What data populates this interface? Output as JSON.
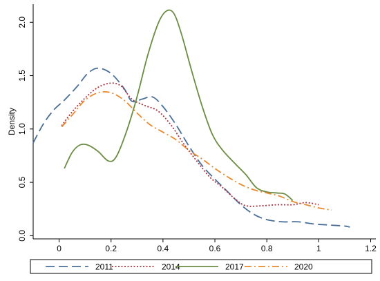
{
  "chart_data": {
    "type": "line",
    "title": "",
    "xlabel": "",
    "ylabel": "Density",
    "xlim": [
      -0.1,
      1.22
    ],
    "ylim": [
      -0.03,
      2.17
    ],
    "x_ticks": [
      "0",
      "0.2",
      "0.4",
      "0.6",
      "0.8",
      "1",
      "1.2"
    ],
    "y_ticks": [
      "0.0",
      "0.5",
      "1.0",
      "1.5",
      "2.0"
    ],
    "grid": false,
    "legend_position": "bottom",
    "series": [
      {
        "name": "2011",
        "color": "#4a6f97",
        "dash": "long-dash",
        "points": [
          [
            -0.1,
            0.87
          ],
          [
            -0.06,
            1.05
          ],
          [
            -0.02,
            1.18
          ],
          [
            0.02,
            1.27
          ],
          [
            0.07,
            1.4
          ],
          [
            0.11,
            1.52
          ],
          [
            0.15,
            1.57
          ],
          [
            0.2,
            1.52
          ],
          [
            0.25,
            1.38
          ],
          [
            0.28,
            1.26
          ],
          [
            0.32,
            1.28
          ],
          [
            0.36,
            1.3
          ],
          [
            0.4,
            1.21
          ],
          [
            0.45,
            1.04
          ],
          [
            0.5,
            0.84
          ],
          [
            0.55,
            0.66
          ],
          [
            0.6,
            0.53
          ],
          [
            0.65,
            0.41
          ],
          [
            0.7,
            0.29
          ],
          [
            0.75,
            0.2
          ],
          [
            0.8,
            0.15
          ],
          [
            0.86,
            0.13
          ],
          [
            0.92,
            0.13
          ],
          [
            0.98,
            0.11
          ],
          [
            1.04,
            0.1
          ],
          [
            1.1,
            0.09
          ],
          [
            1.12,
            0.08
          ]
        ]
      },
      {
        "name": "2014",
        "color": "#a8323e",
        "dash": "dot",
        "points": [
          [
            0.01,
            1.03
          ],
          [
            0.05,
            1.16
          ],
          [
            0.1,
            1.29
          ],
          [
            0.15,
            1.39
          ],
          [
            0.2,
            1.43
          ],
          [
            0.24,
            1.4
          ],
          [
            0.28,
            1.28
          ],
          [
            0.33,
            1.22
          ],
          [
            0.38,
            1.17
          ],
          [
            0.43,
            1.04
          ],
          [
            0.48,
            0.86
          ],
          [
            0.53,
            0.7
          ],
          [
            0.58,
            0.55
          ],
          [
            0.63,
            0.45
          ],
          [
            0.68,
            0.34
          ],
          [
            0.72,
            0.28
          ],
          [
            0.78,
            0.28
          ],
          [
            0.84,
            0.29
          ],
          [
            0.9,
            0.29
          ],
          [
            0.95,
            0.31
          ],
          [
            1.0,
            0.29
          ]
        ]
      },
      {
        "name": "2017",
        "color": "#6b8c42",
        "dash": "solid",
        "points": [
          [
            0.02,
            0.63
          ],
          [
            0.05,
            0.78
          ],
          [
            0.08,
            0.85
          ],
          [
            0.11,
            0.85
          ],
          [
            0.15,
            0.79
          ],
          [
            0.19,
            0.7
          ],
          [
            0.22,
            0.74
          ],
          [
            0.26,
            0.98
          ],
          [
            0.3,
            1.3
          ],
          [
            0.34,
            1.68
          ],
          [
            0.38,
            1.98
          ],
          [
            0.41,
            2.1
          ],
          [
            0.44,
            2.09
          ],
          [
            0.47,
            1.9
          ],
          [
            0.51,
            1.55
          ],
          [
            0.55,
            1.22
          ],
          [
            0.59,
            0.95
          ],
          [
            0.63,
            0.8
          ],
          [
            0.68,
            0.67
          ],
          [
            0.72,
            0.57
          ],
          [
            0.76,
            0.45
          ],
          [
            0.8,
            0.41
          ],
          [
            0.84,
            0.4
          ],
          [
            0.87,
            0.39
          ],
          [
            0.9,
            0.33
          ]
        ]
      },
      {
        "name": "2020",
        "color": "#e8892d",
        "dash": "dash-dot",
        "points": [
          [
            0.01,
            1.02
          ],
          [
            0.05,
            1.13
          ],
          [
            0.1,
            1.27
          ],
          [
            0.15,
            1.34
          ],
          [
            0.2,
            1.34
          ],
          [
            0.25,
            1.27
          ],
          [
            0.3,
            1.15
          ],
          [
            0.35,
            1.04
          ],
          [
            0.4,
            0.97
          ],
          [
            0.45,
            0.9
          ],
          [
            0.5,
            0.8
          ],
          [
            0.55,
            0.72
          ],
          [
            0.6,
            0.63
          ],
          [
            0.65,
            0.55
          ],
          [
            0.7,
            0.48
          ],
          [
            0.75,
            0.43
          ],
          [
            0.8,
            0.4
          ],
          [
            0.85,
            0.37
          ],
          [
            0.9,
            0.32
          ],
          [
            0.95,
            0.29
          ],
          [
            1.0,
            0.26
          ],
          [
            1.05,
            0.24
          ]
        ]
      }
    ]
  }
}
